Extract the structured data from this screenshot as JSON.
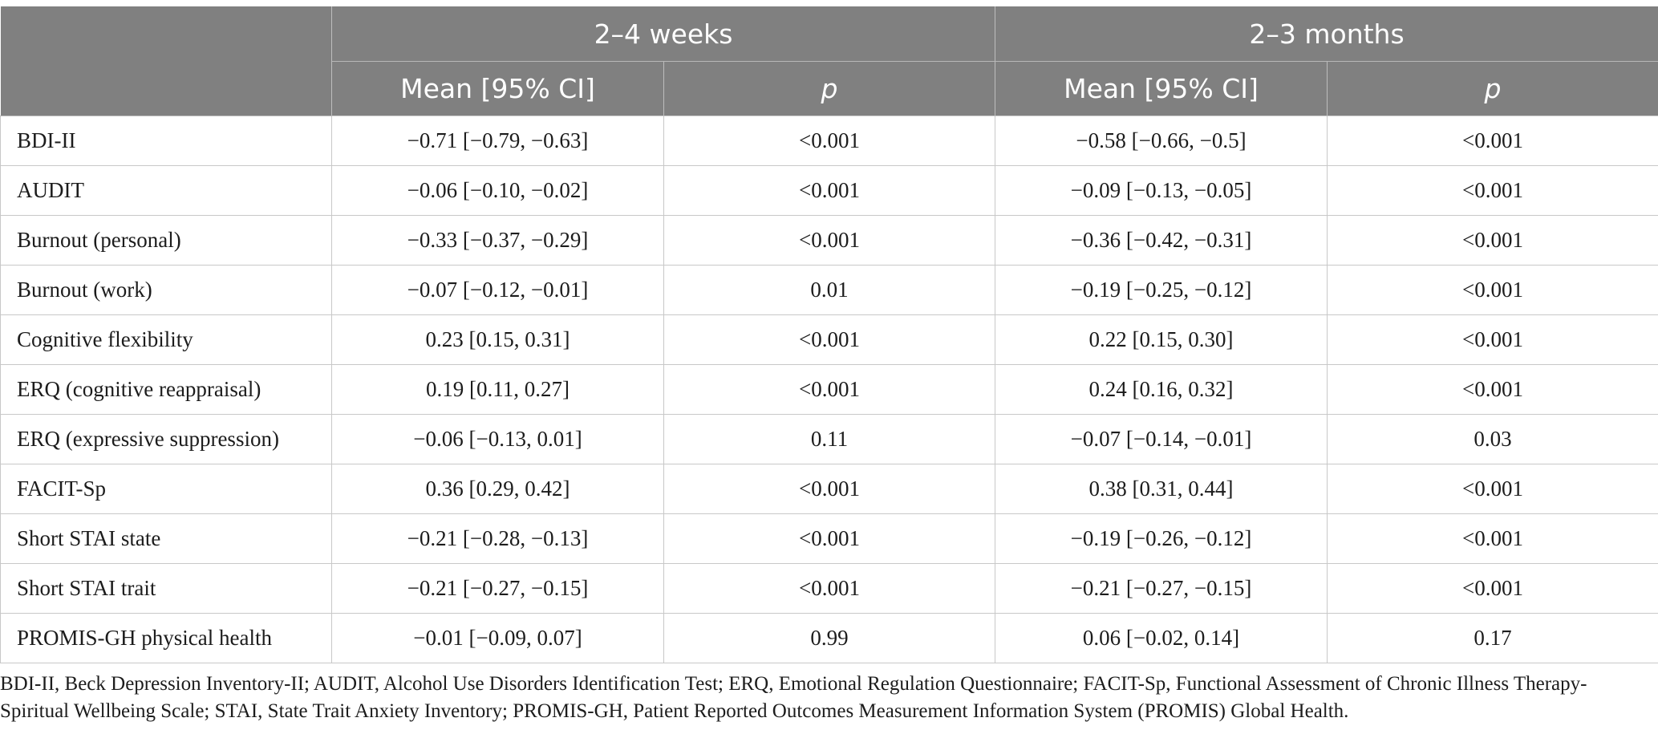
{
  "table": {
    "groups": [
      "2–4 weeks",
      "2–3 months"
    ],
    "subheaders": [
      "Mean [95% CI]",
      "p",
      "Mean [95% CI]",
      "p"
    ],
    "rows": [
      {
        "label": "BDI-II",
        "w_mean": "−0.71 [−0.79, −0.63]",
        "w_p": "<0.001",
        "m_mean": "−0.58 [−0.66, −0.5]",
        "m_p": "<0.001"
      },
      {
        "label": "AUDIT",
        "w_mean": "−0.06 [−0.10, −0.02]",
        "w_p": "<0.001",
        "m_mean": "−0.09 [−0.13, −0.05]",
        "m_p": "<0.001"
      },
      {
        "label": "Burnout (personal)",
        "w_mean": "−0.33 [−0.37, −0.29]",
        "w_p": "<0.001",
        "m_mean": "−0.36 [−0.42, −0.31]",
        "m_p": "<0.001"
      },
      {
        "label": "Burnout (work)",
        "w_mean": "−0.07 [−0.12, −0.01]",
        "w_p": "0.01",
        "m_mean": "−0.19 [−0.25, −0.12]",
        "m_p": "<0.001"
      },
      {
        "label": "Cognitive flexibility",
        "w_mean": "0.23 [0.15, 0.31]",
        "w_p": "<0.001",
        "m_mean": "0.22 [0.15, 0.30]",
        "m_p": "<0.001"
      },
      {
        "label": "ERQ (cognitive reappraisal)",
        "w_mean": "0.19 [0.11, 0.27]",
        "w_p": "<0.001",
        "m_mean": "0.24 [0.16, 0.32]",
        "m_p": "<0.001"
      },
      {
        "label": "ERQ (expressive suppression)",
        "w_mean": "−0.06 [−0.13, 0.01]",
        "w_p": "0.11",
        "m_mean": "−0.07 [−0.14, −0.01]",
        "m_p": "0.03"
      },
      {
        "label": "FACIT-Sp",
        "w_mean": "0.36 [0.29, 0.42]",
        "w_p": "<0.001",
        "m_mean": "0.38 [0.31, 0.44]",
        "m_p": "<0.001"
      },
      {
        "label": "Short STAI state",
        "w_mean": "−0.21 [−0.28, −0.13]",
        "w_p": "<0.001",
        "m_mean": "−0.19 [−0.26, −0.12]",
        "m_p": "<0.001"
      },
      {
        "label": "Short STAI trait",
        "w_mean": "−0.21 [−0.27, −0.15]",
        "w_p": "<0.001",
        "m_mean": "−0.21 [−0.27, −0.15]",
        "m_p": "<0.001"
      },
      {
        "label": "PROMIS-GH physical health",
        "w_mean": "−0.01 [−0.09, 0.07]",
        "w_p": "0.99",
        "m_mean": "0.06 [−0.02, 0.14]",
        "m_p": "0.17"
      }
    ]
  },
  "footnote": "BDI-II, Beck Depression Inventory-II; AUDIT, Alcohol Use Disorders Identification Test; ERQ, Emotional Regulation Questionnaire; FACIT-Sp, Functional Assessment of Chronic Illness Therapy-Spiritual Wellbeing Scale; STAI, State Trait Anxiety Inventory; PROMIS-GH, Patient Reported Outcomes Measurement Information System (PROMIS) Global Health."
}
